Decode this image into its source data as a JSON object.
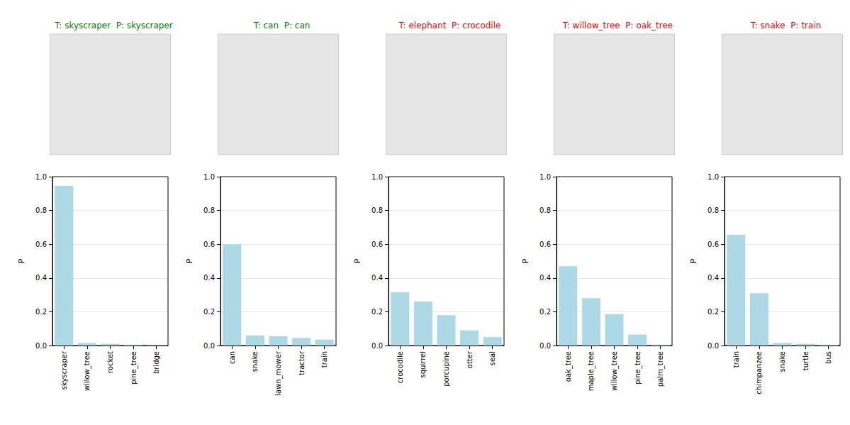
{
  "chart_data": [
    {
      "type": "bar",
      "title": "T: skyscraper  P: skyscraper",
      "y_label": "P",
      "categories": [
        "skyscraper",
        "willow_tree",
        "rocket",
        "pine_tree",
        "bridge"
      ],
      "values": [
        0.945,
        0.015,
        0.01,
        0.005,
        0.003
      ],
      "color": "#add8e6",
      "ylim": [
        0,
        1
      ],
      "yticks": [
        {
          "value": 0,
          "label": "0.0"
        },
        0.2,
        0.4,
        0.6,
        0.8,
        {
          "value": 1,
          "label": "1.0"
        }
      ],
      "grid": true
    },
    {
      "type": "bar",
      "title": "T: can  P: can",
      "y_label": "P",
      "categories": [
        "can",
        "snake",
        "lawn_mower",
        "tractor",
        "train"
      ],
      "values": [
        0.6,
        0.06,
        0.055,
        0.045,
        0.035
      ],
      "color": "#add8e6",
      "ylim": [
        0,
        1
      ],
      "yticks": [
        {
          "value": 0,
          "label": "0.0"
        },
        0.2,
        0.4,
        0.6,
        0.8,
        {
          "value": 1,
          "label": "1.0"
        }
      ],
      "grid": true
    },
    {
      "type": "bar",
      "title": "T: elephant  P: crocodile",
      "y_label": "P",
      "categories": [
        "crocodile",
        "squirrel",
        "porcupine",
        "otter",
        "seal"
      ],
      "values": [
        0.315,
        0.26,
        0.18,
        0.09,
        0.05
      ],
      "color": "#add8e6",
      "ylim": [
        0,
        1
      ],
      "yticks": [
        {
          "value": 0,
          "label": "0.0"
        },
        0.2,
        0.4,
        0.6,
        0.8,
        {
          "value": 1,
          "label": "1.0"
        }
      ],
      "grid": true
    },
    {
      "type": "bar",
      "title": "T: willow_tree  P: oak_tree",
      "y_label": "P",
      "categories": [
        "oak_tree",
        "maple_tree",
        "willow_tree",
        "pine_tree",
        "palm_tree"
      ],
      "values": [
        0.47,
        0.28,
        0.185,
        0.065,
        0.005
      ],
      "color": "#add8e6",
      "ylim": [
        0,
        1
      ],
      "yticks": [
        {
          "value": 0,
          "label": "0.0"
        },
        0.2,
        0.4,
        0.6,
        0.8,
        {
          "value": 1,
          "label": "1.0"
        }
      ],
      "grid": true
    },
    {
      "type": "bar",
      "title": "T: snake  P: train",
      "y_label": "P",
      "categories": [
        "train",
        "chimpanzee",
        "snake",
        "turtle",
        "bus"
      ],
      "values": [
        0.655,
        0.31,
        0.015,
        0.01,
        0.005
      ],
      "color": "#add8e6",
      "ylim": [
        0,
        1
      ],
      "yticks": [
        {
          "value": 0,
          "label": "0.0"
        },
        0.2,
        0.4,
        0.6,
        0.8,
        {
          "value": 1,
          "label": "1.0"
        }
      ],
      "grid": true
    }
  ]
}
